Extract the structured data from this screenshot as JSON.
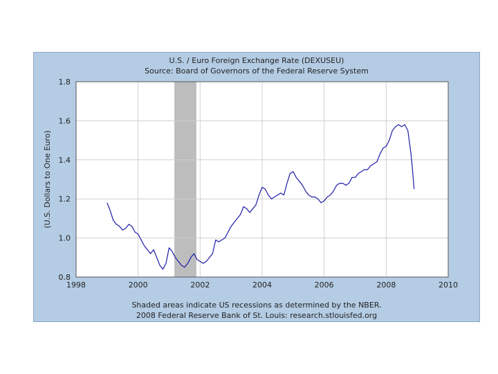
{
  "chart_data": {
    "type": "line",
    "title": "U.S. / Euro Foreign Exchange Rate (DEXUSEU)",
    "subtitle": "Source: Board of Governors of the Federal Reserve System",
    "ylabel": "(U.S. Dollars to One Euro)",
    "xlabel": "",
    "xlim": [
      1998,
      2010
    ],
    "ylim": [
      0.8,
      1.8
    ],
    "x_ticks": [
      1998,
      2000,
      2002,
      2004,
      2006,
      2008,
      2010
    ],
    "x_tick_labels": [
      "1998",
      "2000",
      "2002",
      "2004",
      "2006",
      "2008",
      "2010"
    ],
    "y_ticks": [
      0.8,
      1.0,
      1.2,
      1.4,
      1.6,
      1.8
    ],
    "y_tick_labels": [
      "0.8",
      "1.0",
      "1.2",
      "1.4",
      "1.6",
      "1.8"
    ],
    "grid": true,
    "recession_shading": [
      {
        "start": 2001.17,
        "end": 2001.88
      }
    ],
    "series": [
      {
        "color": "#1a1aa8",
        "x": [
          1999.0,
          1999.1,
          1999.2,
          1999.3,
          1999.4,
          1999.5,
          1999.6,
          1999.7,
          1999.8,
          1999.9,
          2000.0,
          2000.1,
          2000.2,
          2000.3,
          2000.4,
          2000.5,
          2000.6,
          2000.7,
          2000.8,
          2000.9,
          2001.0,
          2001.1,
          2001.2,
          2001.3,
          2001.4,
          2001.5,
          2001.6,
          2001.7,
          2001.8,
          2001.9,
          2002.0,
          2002.1,
          2002.2,
          2002.3,
          2002.4,
          2002.5,
          2002.6,
          2002.7,
          2002.8,
          2002.9,
          2003.0,
          2003.1,
          2003.2,
          2003.3,
          2003.4,
          2003.5,
          2003.6,
          2003.7,
          2003.8,
          2003.9,
          2004.0,
          2004.1,
          2004.2,
          2004.3,
          2004.4,
          2004.5,
          2004.6,
          2004.7,
          2004.8,
          2004.9,
          2005.0,
          2005.1,
          2005.2,
          2005.3,
          2005.4,
          2005.5,
          2005.6,
          2005.7,
          2005.8,
          2005.9,
          2006.0,
          2006.1,
          2006.2,
          2006.3,
          2006.4,
          2006.5,
          2006.6,
          2006.7,
          2006.8,
          2006.9,
          2007.0,
          2007.1,
          2007.2,
          2007.3,
          2007.4,
          2007.5,
          2007.6,
          2007.7,
          2007.8,
          2007.9,
          2008.0,
          2008.1,
          2008.2,
          2008.3,
          2008.4,
          2008.5,
          2008.6,
          2008.7,
          2008.8,
          2008.85,
          2008.9
        ],
        "y": [
          1.18,
          1.14,
          1.09,
          1.07,
          1.06,
          1.04,
          1.05,
          1.07,
          1.06,
          1.03,
          1.02,
          0.99,
          0.96,
          0.94,
          0.92,
          0.94,
          0.9,
          0.86,
          0.84,
          0.87,
          0.95,
          0.93,
          0.9,
          0.88,
          0.86,
          0.85,
          0.87,
          0.9,
          0.92,
          0.89,
          0.88,
          0.87,
          0.88,
          0.9,
          0.92,
          0.99,
          0.98,
          0.99,
          1.0,
          1.03,
          1.06,
          1.08,
          1.1,
          1.12,
          1.16,
          1.15,
          1.13,
          1.15,
          1.17,
          1.22,
          1.26,
          1.25,
          1.22,
          1.2,
          1.21,
          1.22,
          1.23,
          1.22,
          1.28,
          1.33,
          1.34,
          1.31,
          1.29,
          1.27,
          1.24,
          1.22,
          1.21,
          1.21,
          1.2,
          1.18,
          1.19,
          1.21,
          1.22,
          1.24,
          1.27,
          1.28,
          1.28,
          1.27,
          1.28,
          1.31,
          1.31,
          1.33,
          1.34,
          1.35,
          1.35,
          1.37,
          1.38,
          1.39,
          1.43,
          1.46,
          1.47,
          1.5,
          1.55,
          1.57,
          1.58,
          1.57,
          1.58,
          1.55,
          1.43,
          1.35,
          1.25
        ]
      }
    ]
  },
  "footer": {
    "note": "Shaded areas indicate US recessions as determined by the NBER.",
    "credit": "2008 Federal Reserve Bank of St. Louis: research.stlouisfed.org"
  }
}
